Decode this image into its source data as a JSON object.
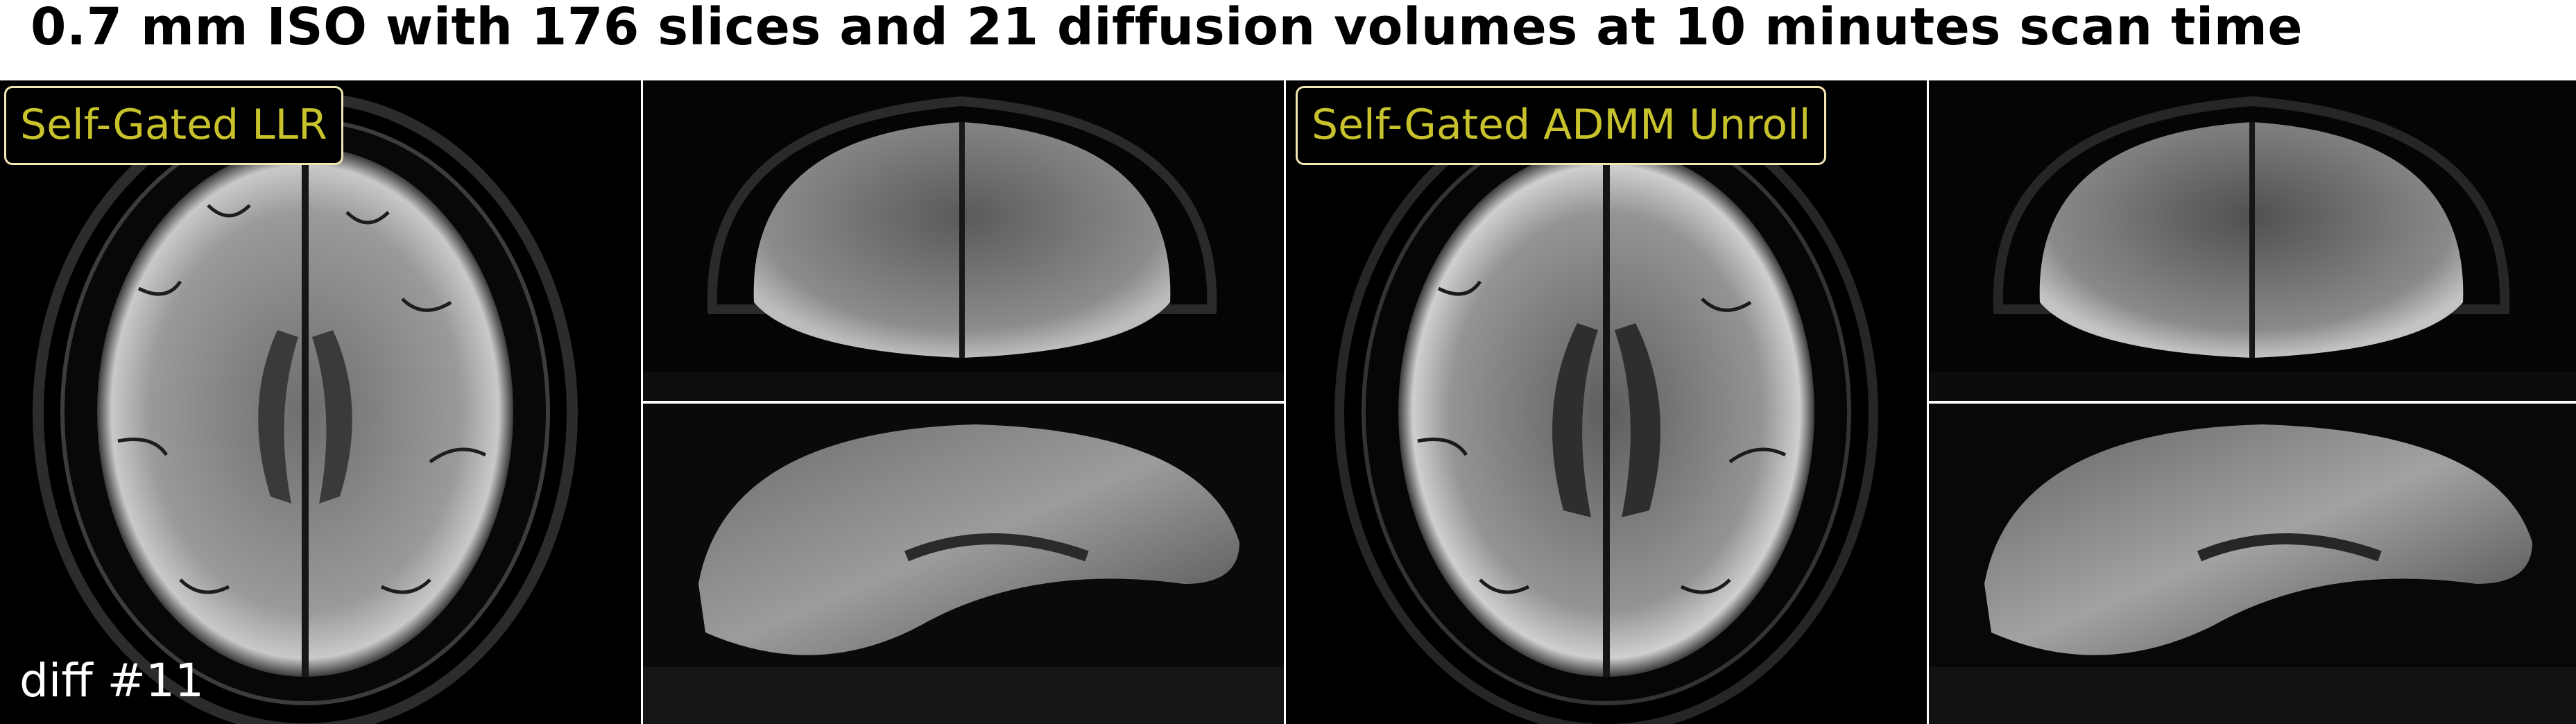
{
  "title": "0.7 mm ISO with 176 slices and 21 diffusion volumes at 10 minutes scan time",
  "panels": {
    "llr": {
      "label": "Self-Gated LLR",
      "diffusion_label": "diff #11"
    },
    "admm": {
      "label": "Self-Gated ADMM Unroll"
    }
  },
  "colors": {
    "label_text": "#c8c32c",
    "label_border": "#f3e6b4",
    "background": "#000000"
  }
}
